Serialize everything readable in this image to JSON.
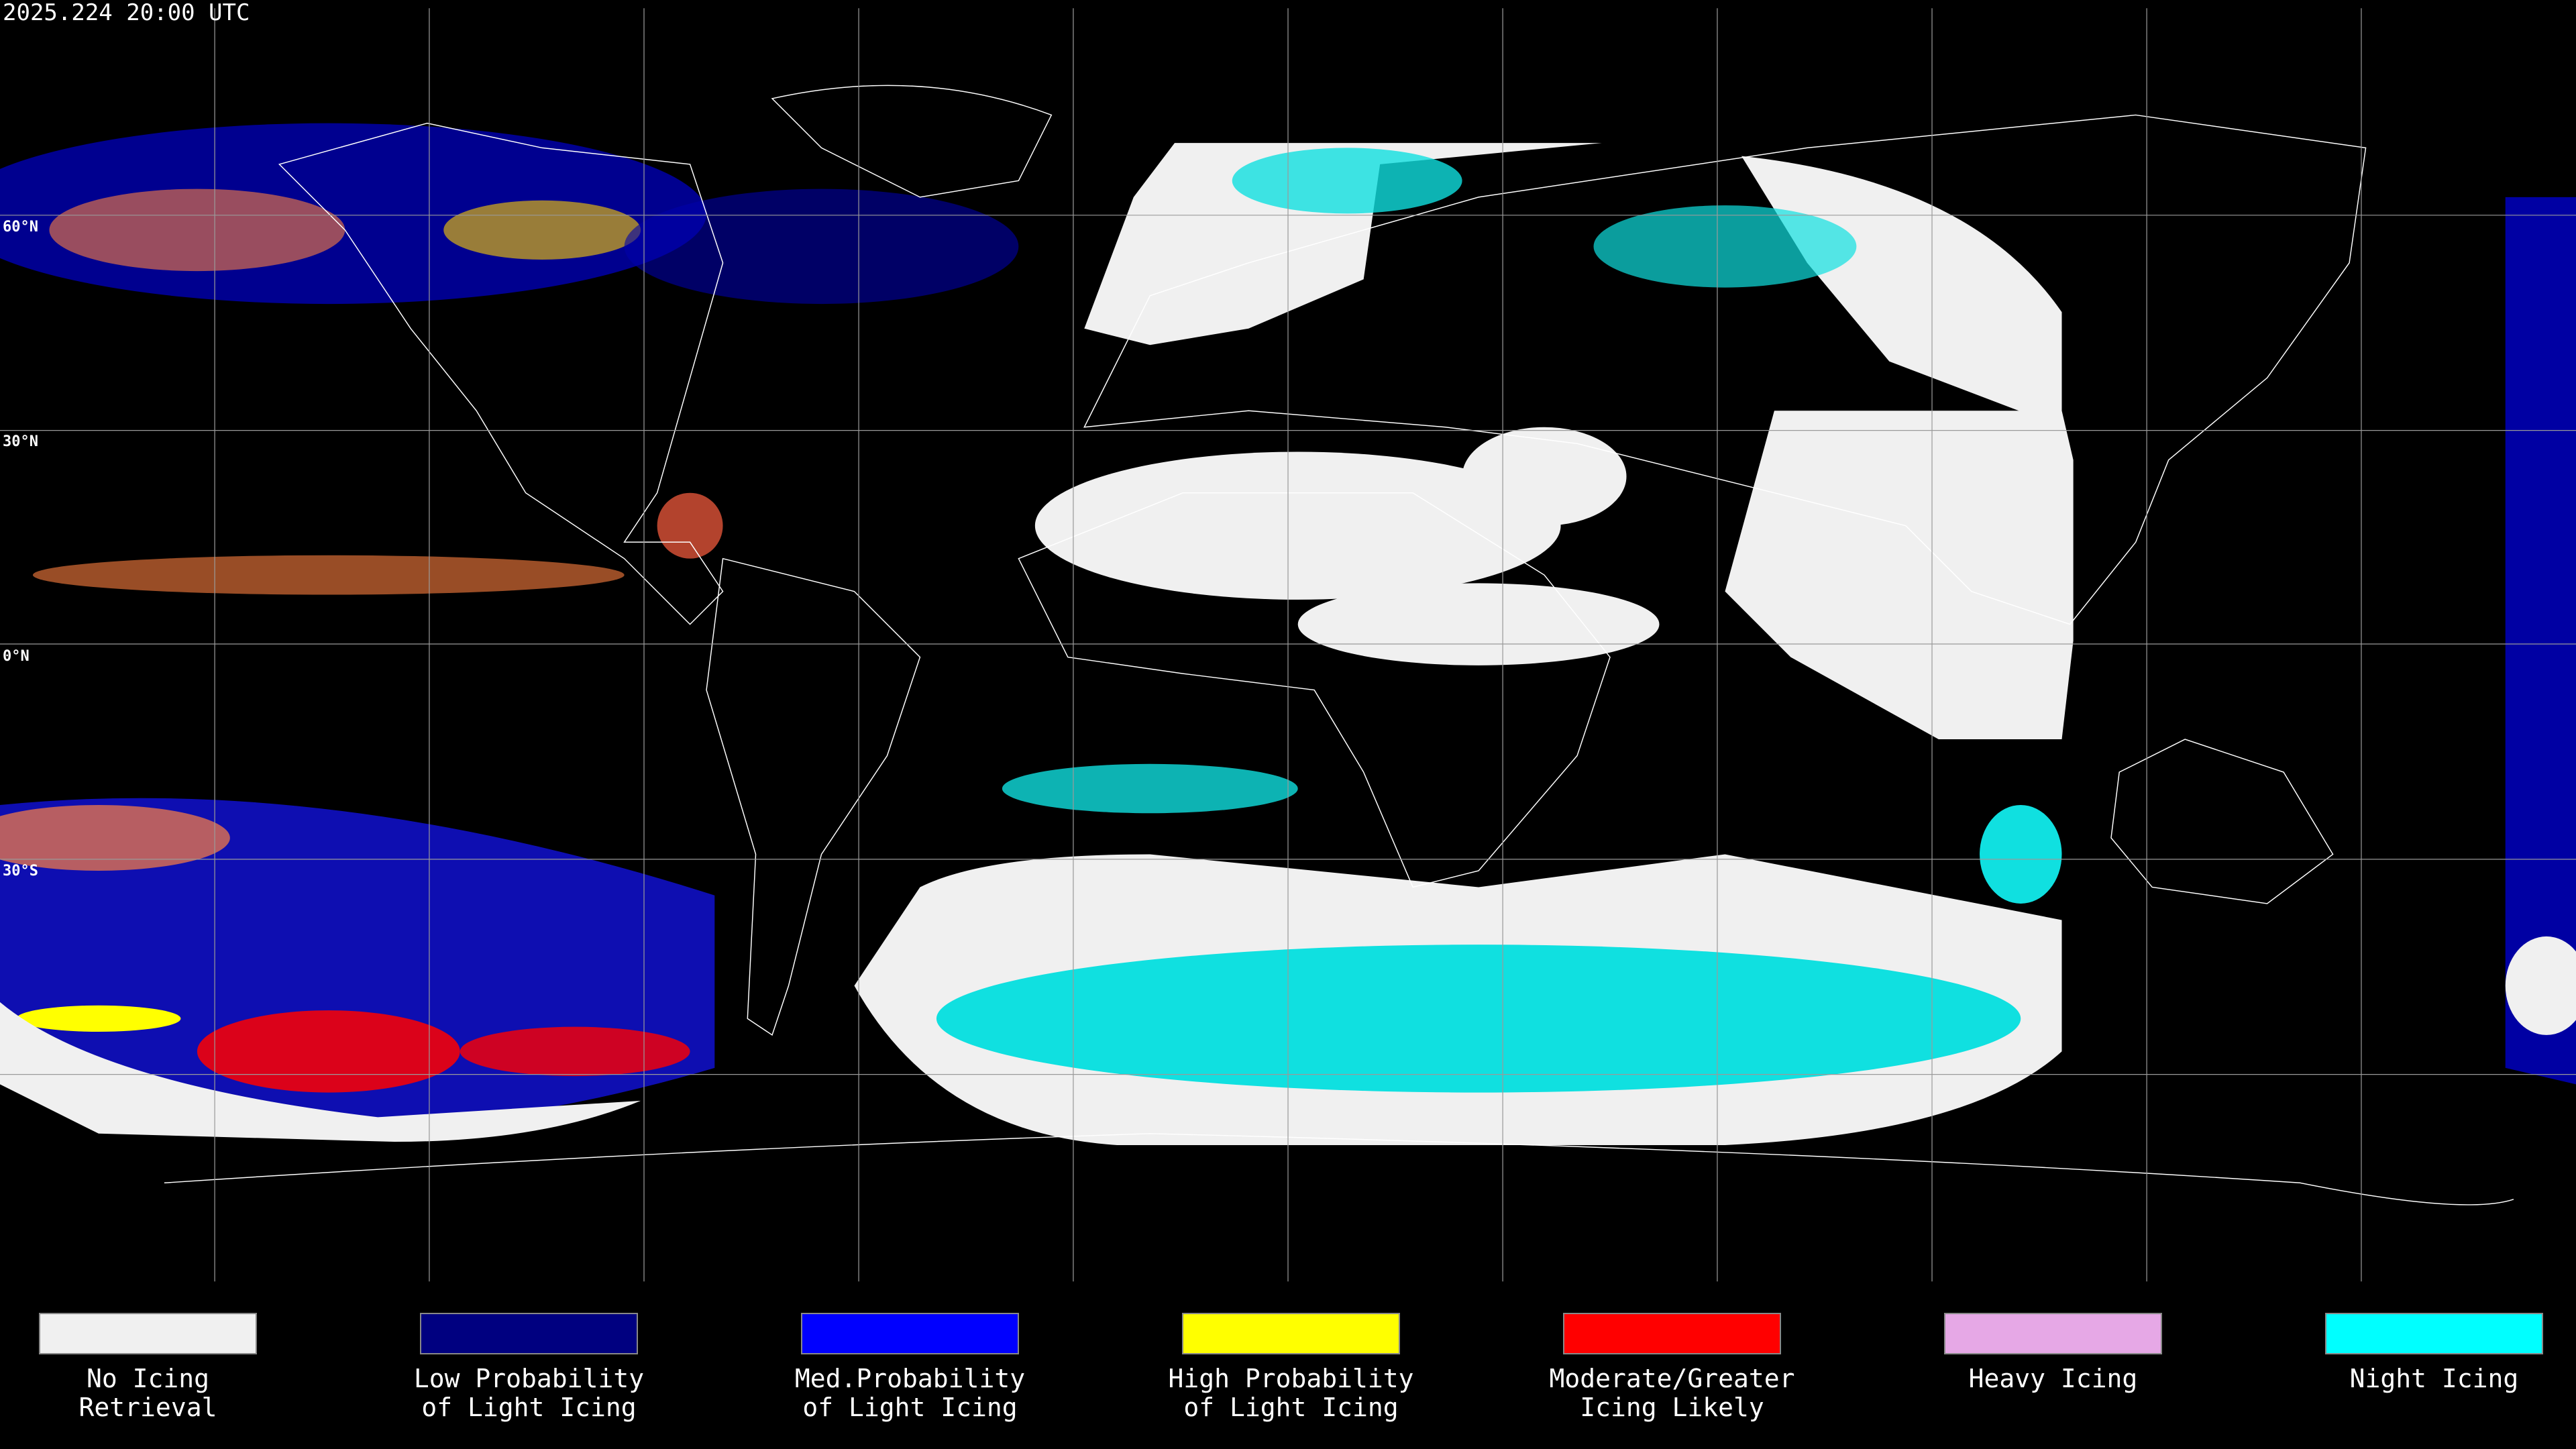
{
  "header": {
    "timestamp": "2025.224 20:00 UTC"
  },
  "map": {
    "lat_labels": [
      "60°N",
      "30°N",
      "0°N",
      "30°S"
    ]
  },
  "legend": {
    "items": [
      {
        "color": "#f0f0f0",
        "lines": [
          "No Icing",
          "Retrieval"
        ]
      },
      {
        "color": "#000080",
        "lines": [
          "Low Probability",
          "of Light Icing"
        ]
      },
      {
        "color": "#0000ff",
        "lines": [
          "Med.Probability",
          "of Light Icing"
        ]
      },
      {
        "color": "#ffff00",
        "lines": [
          "High Probability",
          "of Light Icing"
        ]
      },
      {
        "color": "#ff0000",
        "lines": [
          "Moderate/Greater",
          "Icing Likely"
        ]
      },
      {
        "color": "#e6a8e6",
        "lines": [
          "Heavy Icing"
        ]
      },
      {
        "color": "#00ffff",
        "lines": [
          "Night Icing"
        ]
      }
    ]
  }
}
